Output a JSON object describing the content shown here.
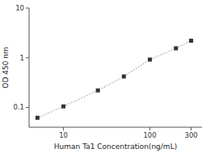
{
  "chart_data": {
    "type": "line",
    "xlabel": "Human Ta1 Concentration(ng/mL)",
    "ylabel": "OD 450 nm",
    "x": [
      5,
      10,
      25,
      50,
      100,
      200,
      300
    ],
    "values": [
      0.062,
      0.105,
      0.22,
      0.42,
      0.92,
      1.55,
      2.2
    ],
    "xlim": [
      4,
      400
    ],
    "ylim": [
      0.04,
      10
    ],
    "xticks": [
      10,
      100,
      300
    ],
    "yticks": [
      0.1,
      1,
      10
    ],
    "log": true,
    "grid": false,
    "marker": "square",
    "line_style": "dotted",
    "color": "#333333"
  }
}
